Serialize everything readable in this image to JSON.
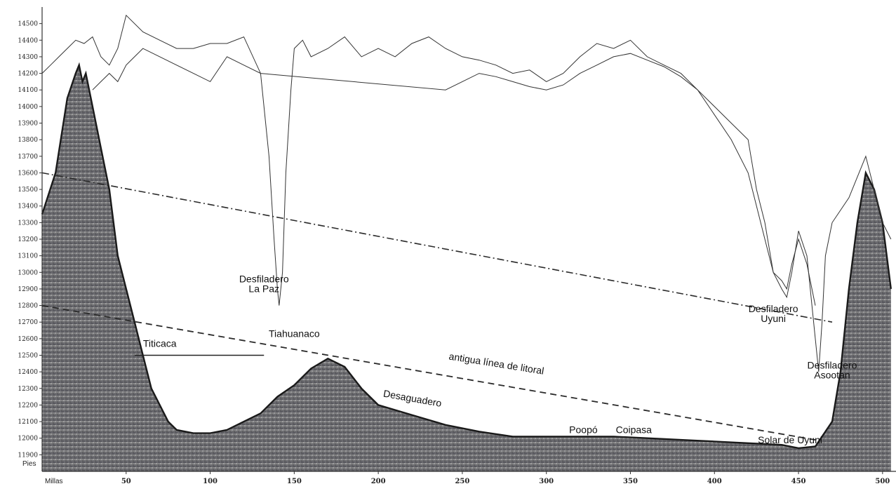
{
  "chart_data": {
    "type": "area",
    "title": "",
    "xlabel": "Millas",
    "ylabel": "Pies",
    "xlim": [
      0,
      500
    ],
    "ylim": [
      11800,
      14600
    ],
    "yticks": [
      11900,
      12000,
      12100,
      12200,
      12300,
      12400,
      12500,
      12600,
      12700,
      12800,
      12900,
      13000,
      13100,
      13200,
      13300,
      13400,
      13500,
      13600,
      13700,
      13800,
      13900,
      14000,
      14100,
      14200,
      14300,
      14400,
      14500
    ],
    "ytick_labels": [
      "11900",
      "12000",
      "12100",
      "12200",
      "12300",
      "12400",
      "12500",
      "12600",
      "12700",
      "12800",
      "12900",
      "13000",
      "13100",
      "13200",
      "13300",
      "13400",
      "13500",
      "13600",
      "13700",
      "13800",
      "13900",
      "14000",
      "14100",
      "14200",
      "14300",
      "14400",
      "14500"
    ],
    "xticks": [
      50,
      100,
      150,
      200,
      250,
      300,
      350,
      400,
      450,
      500
    ],
    "xtick_labels": [
      "50",
      "100",
      "150",
      "200",
      "250",
      "300",
      "350",
      "400",
      "450",
      "500"
    ],
    "grid": false,
    "legend": "none",
    "series": [
      {
        "role": "terrain-profile",
        "x": [
          0,
          8,
          15,
          20,
          22,
          24,
          26,
          28,
          30,
          35,
          40,
          45,
          50,
          55,
          60,
          65,
          70,
          75,
          80,
          90,
          100,
          110,
          120,
          130,
          140,
          150,
          160,
          170,
          180,
          190,
          200,
          220,
          240,
          260,
          280,
          300,
          320,
          340,
          360,
          380,
          400,
          420,
          440,
          450,
          460,
          470,
          475,
          480,
          485,
          490,
          495,
          500,
          505
        ],
        "values": [
          13350,
          13600,
          14050,
          14200,
          14250,
          14150,
          14200,
          14100,
          14000,
          13750,
          13500,
          13100,
          12900,
          12700,
          12500,
          12300,
          12200,
          12100,
          12050,
          12030,
          12030,
          12050,
          12100,
          12150,
          12250,
          12320,
          12420,
          12480,
          12430,
          12300,
          12200,
          12140,
          12080,
          12040,
          12010,
          12010,
          12010,
          12010,
          12000,
          11990,
          11980,
          11970,
          11960,
          11940,
          11950,
          12100,
          12400,
          12900,
          13300,
          13600,
          13500,
          13300,
          12900
        ]
      },
      {
        "role": "upper-rim-profile",
        "x": [
          0,
          5,
          10,
          15,
          20,
          25,
          30,
          35,
          40,
          45,
          50,
          60,
          70,
          80,
          90,
          100,
          110,
          120,
          130,
          135,
          138,
          140,
          141,
          143,
          145,
          148,
          150,
          155,
          160,
          170,
          180,
          190,
          200,
          210,
          220,
          230,
          240,
          250,
          260,
          270,
          280,
          290,
          300,
          310,
          320,
          330,
          340,
          350,
          360,
          370,
          380,
          390,
          400,
          410,
          420,
          425,
          430,
          435,
          440,
          443,
          446,
          450,
          455,
          460,
          462,
          464,
          466,
          470,
          480,
          490,
          500,
          505
        ],
        "values": [
          14200,
          14250,
          14300,
          14350,
          14400,
          14380,
          14420,
          14300,
          14250,
          14350,
          14550,
          14450,
          14400,
          14350,
          14350,
          14380,
          14380,
          14420,
          14200,
          13700,
          13200,
          12900,
          12800,
          13000,
          13600,
          14100,
          14350,
          14400,
          14300,
          14350,
          14420,
          14300,
          14350,
          14300,
          14380,
          14420,
          14350,
          14300,
          14280,
          14250,
          14200,
          14220,
          14150,
          14200,
          14300,
          14380,
          14350,
          14400,
          14300,
          14250,
          14200,
          14100,
          14000,
          13900,
          13800,
          13500,
          13300,
          13000,
          12900,
          12850,
          13000,
          13250,
          13100,
          12600,
          12400,
          12700,
          13100,
          13300,
          13450,
          13700,
          13300,
          13200
        ]
      },
      {
        "role": "lower-rim-profile",
        "x": [
          30,
          35,
          40,
          45,
          50,
          55,
          60,
          70,
          80,
          90,
          100,
          110,
          120,
          130,
          240,
          250,
          260,
          270,
          280,
          290,
          300,
          310,
          320,
          330,
          340,
          350,
          360,
          370,
          380,
          390,
          400,
          410,
          420,
          425,
          430,
          435,
          440,
          443,
          446,
          450,
          455,
          460
        ],
        "values": [
          14100,
          14150,
          14200,
          14150,
          14250,
          14300,
          14350,
          14300,
          14250,
          14200,
          14150,
          14300,
          14250,
          14200,
          14100,
          14150,
          14200,
          14180,
          14150,
          14120,
          14100,
          14130,
          14200,
          14250,
          14300,
          14320,
          14280,
          14240,
          14180,
          14100,
          13950,
          13800,
          13600,
          13400,
          13200,
          13000,
          12950,
          12900,
          13050,
          13200,
          13050,
          12800
        ]
      },
      {
        "role": "ancient-shoreline",
        "x": [
          0,
          460
        ],
        "values": [
          12800,
          11990
        ]
      },
      {
        "role": "upper-shoreline",
        "x": [
          0,
          470
        ],
        "values": [
          13600,
          12700
        ]
      }
    ],
    "annotations": [
      {
        "text": "Desfiladero",
        "x": 132,
        "y": 12940
      },
      {
        "text": "La Paz",
        "x": 132,
        "y": 12880
      },
      {
        "text": "Tiahuanaco",
        "x": 150,
        "y": 12610
      },
      {
        "text": "Titicaca",
        "x": 70,
        "y": 12550
      },
      {
        "text": "antigua línea de litoral",
        "x": 270,
        "y": 12430
      },
      {
        "text": "Desaguadero",
        "x": 220,
        "y": 12220
      },
      {
        "text": "Poopó",
        "x": 322,
        "y": 12030
      },
      {
        "text": "Coipasa",
        "x": 352,
        "y": 12030
      },
      {
        "text": "Solar de Uyuni",
        "x": 445,
        "y": 11970
      },
      {
        "text": "Desfiladero",
        "x": 435,
        "y": 12760
      },
      {
        "text": "Uyuni",
        "x": 435,
        "y": 12700
      },
      {
        "text": "Desfiladero",
        "x": 470,
        "y": 12420
      },
      {
        "text": "Asootan",
        "x": 470,
        "y": 12360
      }
    ]
  }
}
